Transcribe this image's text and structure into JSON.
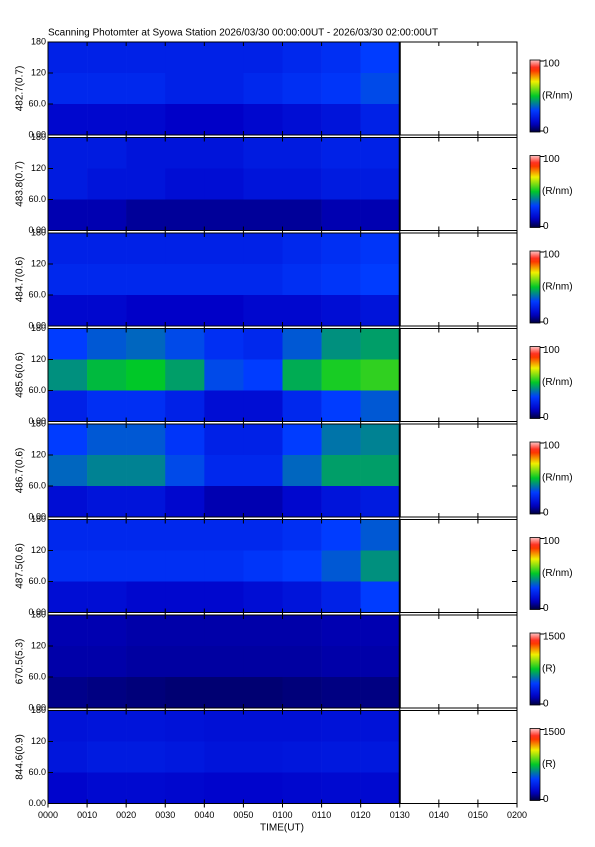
{
  "chart_data": {
    "type": "keogram",
    "title": "Scanning Photomter at Syowa Station 2026/03/30 00:00:00UT - 2026/03/30 02:00:00UT",
    "x_label": "TIME(UT)",
    "xlim": [
      0,
      120
    ],
    "xticks": [
      {
        "value": 0,
        "label": "0000"
      },
      {
        "value": 10,
        "label": "0010"
      },
      {
        "value": 20,
        "label": "0020"
      },
      {
        "value": 30,
        "label": "0030"
      },
      {
        "value": 40,
        "label": "0040"
      },
      {
        "value": 50,
        "label": "0050"
      },
      {
        "value": 60,
        "label": "0100"
      },
      {
        "value": 70,
        "label": "0110"
      },
      {
        "value": 80,
        "label": "0120"
      },
      {
        "value": 90,
        "label": "0130"
      },
      {
        "value": 100,
        "label": "0140"
      },
      {
        "value": 110,
        "label": "0150"
      },
      {
        "value": 120,
        "label": "0200"
      }
    ],
    "ylim": [
      0,
      180
    ],
    "yticks": [
      {
        "value": 0,
        "label": "0.00"
      },
      {
        "value": 60,
        "label": "60.0"
      },
      120,
      180
    ],
    "time_bins": [
      0,
      10,
      20,
      30,
      40,
      50,
      60,
      70,
      80,
      90
    ],
    "angle_bins": [
      180,
      120,
      60,
      0
    ],
    "panels": [
      {
        "label": "482.7(0.7)",
        "unit": "(R/nm)",
        "clim": [
          0,
          100
        ],
        "intensity": [
          [
            22,
            22,
            22,
            22,
            22,
            22,
            24,
            26,
            30
          ],
          [
            24,
            24,
            24,
            22,
            22,
            24,
            26,
            28,
            32
          ],
          [
            14,
            14,
            14,
            12,
            12,
            14,
            16,
            18,
            22
          ]
        ]
      },
      {
        "label": "483.8(0.7)",
        "unit": "(R/nm)",
        "clim": [
          0,
          100
        ],
        "intensity": [
          [
            20,
            20,
            18,
            18,
            18,
            20,
            20,
            22,
            22
          ],
          [
            20,
            18,
            18,
            16,
            16,
            18,
            18,
            20,
            20
          ],
          [
            10,
            10,
            8,
            8,
            8,
            8,
            8,
            10,
            10
          ]
        ]
      },
      {
        "label": "484.7(0.6)",
        "unit": "(R/nm)",
        "clim": [
          0,
          100
        ],
        "intensity": [
          [
            22,
            22,
            22,
            22,
            22,
            22,
            24,
            26,
            28
          ],
          [
            24,
            24,
            24,
            24,
            24,
            24,
            26,
            28,
            30
          ],
          [
            14,
            14,
            12,
            12,
            12,
            14,
            14,
            16,
            18
          ]
        ]
      },
      {
        "label": "485.6(0.6)",
        "unit": "(R/nm)",
        "clim": [
          0,
          100
        ],
        "intensity": [
          [
            30,
            34,
            36,
            32,
            26,
            24,
            34,
            42,
            44
          ],
          [
            42,
            48,
            50,
            44,
            32,
            30,
            46,
            52,
            54
          ],
          [
            22,
            26,
            26,
            22,
            16,
            16,
            24,
            30,
            34
          ]
        ]
      },
      {
        "label": "486.7(0.6)",
        "unit": "(R/nm)",
        "clim": [
          0,
          100
        ],
        "intensity": [
          [
            30,
            34,
            34,
            28,
            22,
            22,
            30,
            38,
            40
          ],
          [
            36,
            40,
            40,
            32,
            24,
            24,
            36,
            44,
            44
          ],
          [
            16,
            18,
            18,
            14,
            10,
            10,
            14,
            18,
            20
          ]
        ]
      },
      {
        "label": "487.5(0.6)",
        "unit": "(R/nm)",
        "clim": [
          0,
          100
        ],
        "intensity": [
          [
            24,
            24,
            24,
            24,
            24,
            24,
            26,
            30,
            34
          ],
          [
            26,
            26,
            26,
            26,
            26,
            28,
            30,
            34,
            42
          ],
          [
            16,
            16,
            14,
            14,
            14,
            16,
            18,
            22,
            30
          ]
        ]
      },
      {
        "label": "670.5(5.3)",
        "unit": "(R)",
        "clim": [
          0,
          1500
        ],
        "intensity": [
          [
            150,
            150,
            140,
            140,
            140,
            140,
            140,
            150,
            150
          ],
          [
            140,
            140,
            130,
            130,
            130,
            130,
            130,
            140,
            140
          ],
          [
            100,
            90,
            80,
            70,
            70,
            70,
            80,
            90,
            90
          ]
        ]
      },
      {
        "label": "844.6(0.9)",
        "unit": "(R)",
        "clim": [
          0,
          1500
        ],
        "intensity": [
          [
            260,
            270,
            270,
            260,
            250,
            250,
            250,
            260,
            260
          ],
          [
            280,
            300,
            300,
            290,
            270,
            270,
            280,
            290,
            290
          ],
          [
            200,
            220,
            220,
            210,
            200,
            200,
            210,
            220,
            220
          ]
        ]
      }
    ]
  }
}
